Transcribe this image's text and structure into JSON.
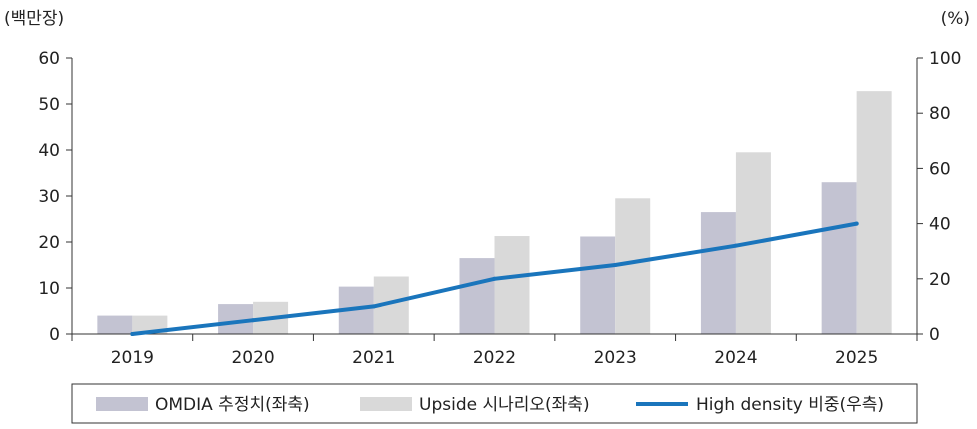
{
  "chart_data": {
    "type": "bar",
    "categories": [
      "2019",
      "2020",
      "2021",
      "2022",
      "2023",
      "2024",
      "2025"
    ],
    "y_left": {
      "unit_label": "(백만장)",
      "ylim": [
        0,
        60
      ],
      "ticks": [
        "0",
        "10",
        "20",
        "30",
        "40",
        "50",
        "60"
      ]
    },
    "y_right": {
      "unit_label": "(%)",
      "ylim": [
        0,
        100
      ],
      "ticks": [
        "0",
        "20",
        "40",
        "60",
        "80",
        "100"
      ]
    },
    "series": [
      {
        "name": "OMDIA 추정치(좌축)",
        "type": "bar",
        "axis": "left",
        "color": "#c3c3d2",
        "values": [
          4,
          6.5,
          10.3,
          16.5,
          21.2,
          26.5,
          33
        ]
      },
      {
        "name": "Upside 시나리오(좌축)",
        "type": "bar",
        "axis": "left",
        "color": "#d9d9d9",
        "values": [
          4,
          7,
          12.5,
          21.3,
          29.5,
          39.5,
          52.8
        ]
      },
      {
        "name": "High density 비중(우측)",
        "type": "line",
        "axis": "right",
        "color": "#1a75bc",
        "values": [
          0,
          5,
          10,
          20,
          25,
          32,
          40
        ]
      }
    ],
    "legend_position": "bottom"
  }
}
